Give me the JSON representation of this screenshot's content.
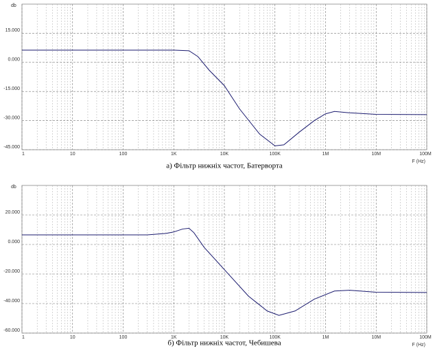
{
  "chart_data": [
    {
      "type": "line",
      "title": "а) Фільтр нижніх частот, Батерворта",
      "y_label": "db",
      "x_label": "F (Hz)",
      "log_x": true,
      "grid": true,
      "xlim": [
        1,
        100000000
      ],
      "ylim": [
        -45,
        30
      ],
      "xticks": [
        1,
        10,
        100,
        {
          "value": 1000,
          "label": "1K"
        },
        {
          "value": 10000,
          "label": "10K"
        },
        {
          "value": 100000,
          "label": "100K"
        },
        {
          "value": 1000000,
          "label": "1M"
        },
        {
          "value": 10000000,
          "label": "10M"
        },
        {
          "value": 100000000,
          "label": "100M"
        }
      ],
      "yticks": [
        {
          "value": 15,
          "label": "15.000"
        },
        {
          "value": 0,
          "label": "0.000"
        },
        {
          "value": -15,
          "label": "-15.000"
        },
        {
          "value": -30,
          "label": "-30.000"
        },
        {
          "value": -45,
          "label": "-45.000"
        }
      ],
      "x": [
        1,
        1000,
        2000,
        3000,
        5000,
        10000,
        20000,
        50000,
        100000,
        150000,
        300000,
        600000,
        1000000,
        1500000,
        3000000,
        10000000,
        100000000
      ],
      "series": [
        {
          "color": "#1a1a6e",
          "values": [
            6.3,
            6.3,
            6,
            3,
            -4,
            -12,
            -24,
            -37,
            -43,
            -42.5,
            -36,
            -30,
            -26.5,
            -25.3,
            -26,
            -26.8,
            -26.9
          ]
        }
      ]
    },
    {
      "type": "line",
      "title": "б) Фільтр нижніх частот, Чебишева",
      "y_label": "db",
      "x_label": "F (Hz)",
      "log_x": true,
      "grid": true,
      "xlim": [
        1,
        100000000
      ],
      "ylim": [
        -60,
        40
      ],
      "xticks": [
        1,
        10,
        100,
        {
          "value": 1000,
          "label": "1K"
        },
        {
          "value": 10000,
          "label": "10K"
        },
        {
          "value": 100000,
          "label": "100K"
        },
        {
          "value": 1000000,
          "label": "1M"
        },
        {
          "value": 10000000,
          "label": "10M"
        },
        {
          "value": 100000000,
          "label": "100M"
        }
      ],
      "yticks": [
        {
          "value": 20,
          "label": "20.000"
        },
        {
          "value": 0,
          "label": "0.000"
        },
        {
          "value": -20,
          "label": "-20.000"
        },
        {
          "value": -40,
          "label": "-40.000"
        },
        {
          "value": -60,
          "label": "-60.000"
        }
      ],
      "x": [
        1,
        300,
        700,
        1000,
        1500,
        2000,
        2500,
        4000,
        10000,
        30000,
        70000,
        120000,
        250000,
        600000,
        1500000,
        3000000,
        10000000,
        100000000
      ],
      "series": [
        {
          "color": "#1a1a6e",
          "values": [
            6.5,
            6.5,
            7.5,
            8.5,
            10.5,
            11,
            8,
            -2,
            -17,
            -35,
            -45,
            -48,
            -45,
            -37,
            -31.5,
            -31,
            -32.3,
            -32.5
          ]
        }
      ]
    }
  ]
}
